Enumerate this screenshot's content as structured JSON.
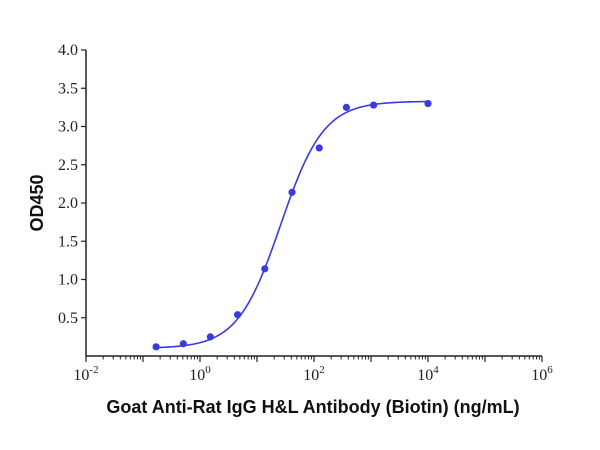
{
  "chart_data": {
    "type": "scatter",
    "title": "",
    "xlabel": "Goat Anti-Rat IgG H&L Antibody (Biotin) (ng/mL)",
    "ylabel": "OD450",
    "xscale": "log",
    "xlim": [
      0.01,
      1000000
    ],
    "ylim": [
      0,
      4.0
    ],
    "x_ticks": [
      {
        "value": 0.01,
        "base": "10",
        "exp": "-2"
      },
      {
        "value": 1,
        "base": "10",
        "exp": "0"
      },
      {
        "value": 100,
        "base": "10",
        "exp": "2"
      },
      {
        "value": 10000,
        "base": "10",
        "exp": "4"
      },
      {
        "value": 1000000,
        "base": "10",
        "exp": "6"
      }
    ],
    "y_ticks": [
      "0.5",
      "1.0",
      "1.5",
      "2.0",
      "2.5",
      "3.0",
      "3.5",
      "4.0"
    ],
    "grid": false,
    "legend": null,
    "series": [
      {
        "name": "OD450",
        "color": "#3a3ae0",
        "x": [
          0.17,
          0.51,
          1.52,
          4.57,
          13.7,
          41.2,
          123.5,
          370.4,
          1111,
          10000
        ],
        "y": [
          0.12,
          0.16,
          0.25,
          0.54,
          1.14,
          2.14,
          2.72,
          3.25,
          3.28,
          3.3
        ]
      }
    ],
    "fit": {
      "type": "4PL",
      "bottom": 0.1,
      "top": 3.33,
      "ec50": 26,
      "hill": 1.15,
      "color": "#3a3ae0"
    }
  }
}
